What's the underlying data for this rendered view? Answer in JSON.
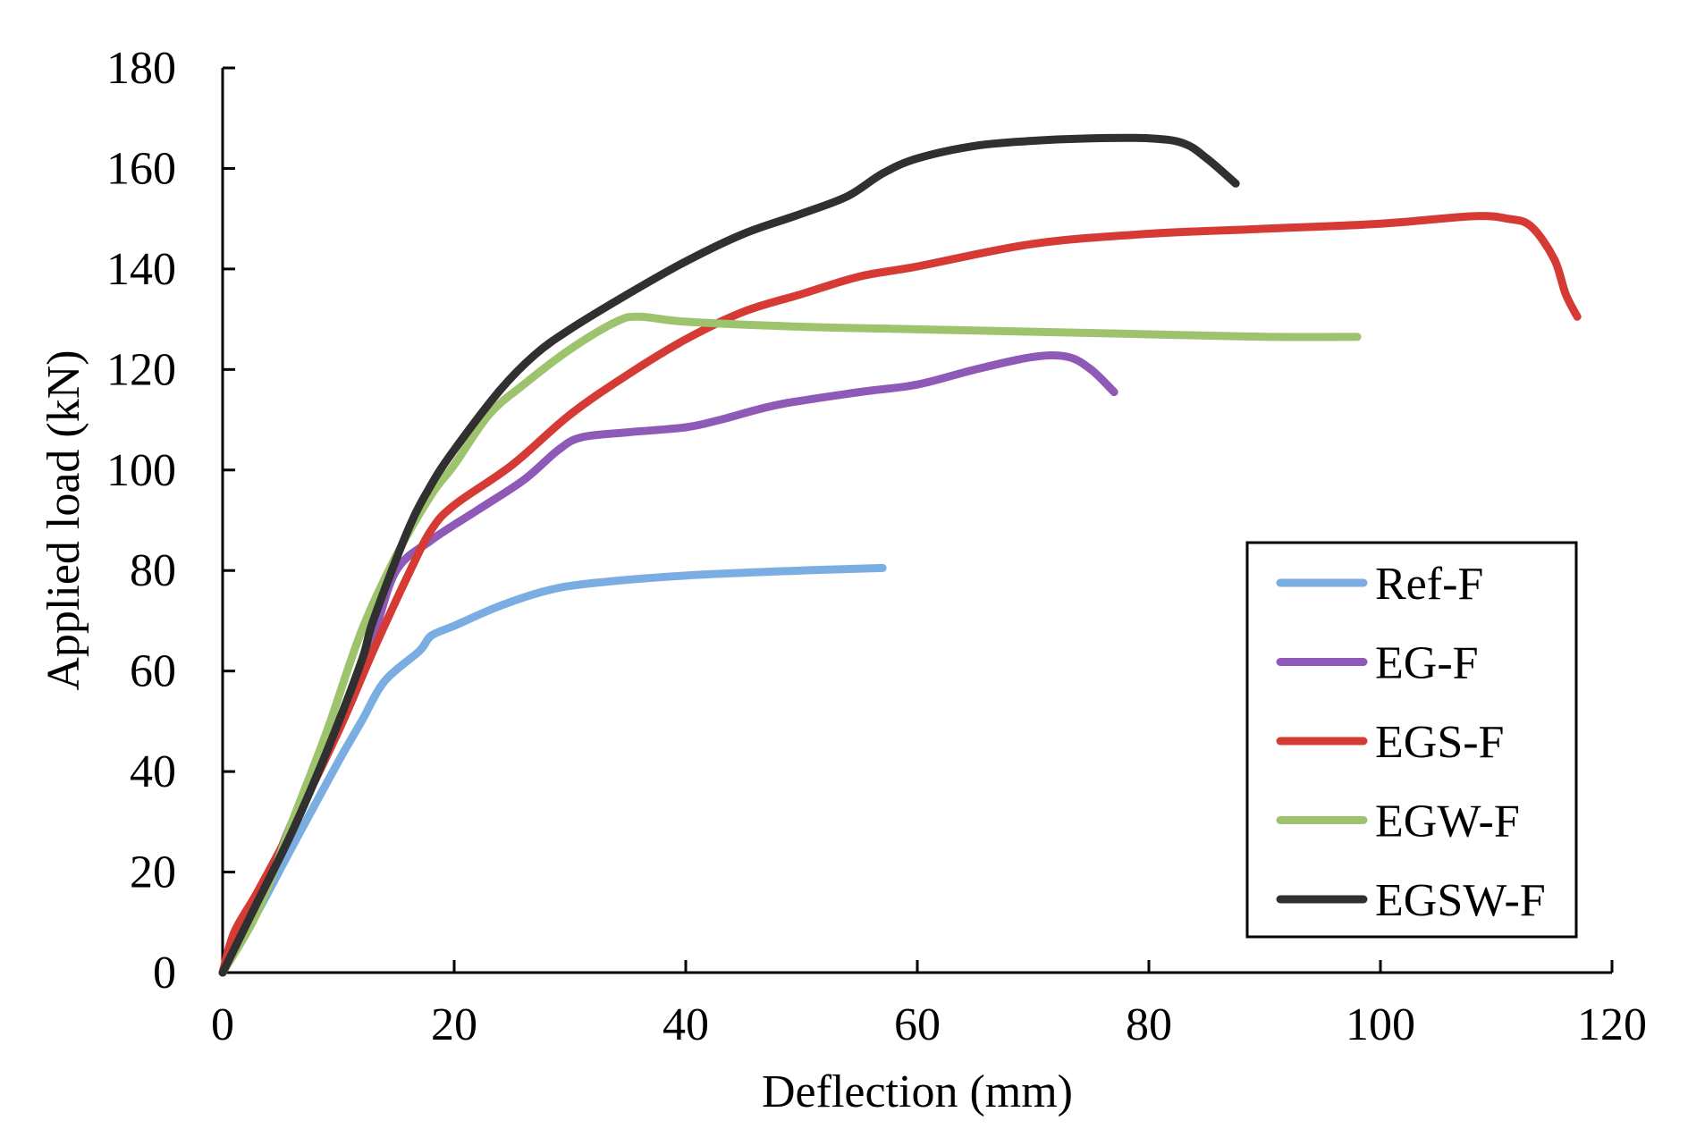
{
  "chart_data": {
    "type": "line",
    "title": "",
    "xlabel": "Deflection (mm)",
    "ylabel": "Applied load (kN)",
    "xlim": [
      0,
      120
    ],
    "ylim": [
      0,
      180
    ],
    "xticks": [
      0,
      20,
      40,
      60,
      80,
      100,
      120
    ],
    "yticks": [
      0,
      20,
      40,
      60,
      80,
      100,
      120,
      140,
      160,
      180
    ],
    "grid": false,
    "legend_position": "right",
    "series": [
      {
        "name": "Ref-F",
        "color": "#7aaee3",
        "points": [
          [
            0,
            0
          ],
          [
            3,
            12
          ],
          [
            6,
            25
          ],
          [
            10,
            42
          ],
          [
            12,
            50
          ],
          [
            14,
            58
          ],
          [
            17,
            64
          ],
          [
            18,
            67
          ],
          [
            20,
            69
          ],
          [
            24,
            73
          ],
          [
            28,
            76
          ],
          [
            32,
            77.5
          ],
          [
            40,
            79
          ],
          [
            50,
            80
          ],
          [
            57,
            80.5
          ]
        ]
      },
      {
        "name": "EG-F",
        "color": "#8e59b7",
        "points": [
          [
            0,
            0
          ],
          [
            3,
            13
          ],
          [
            6,
            30
          ],
          [
            10,
            50
          ],
          [
            13,
            67
          ],
          [
            15,
            80
          ],
          [
            18,
            86
          ],
          [
            22,
            92
          ],
          [
            26,
            98
          ],
          [
            29,
            104
          ],
          [
            31,
            106.5
          ],
          [
            35,
            107.5
          ],
          [
            40,
            108.5
          ],
          [
            43,
            110
          ],
          [
            48,
            113
          ],
          [
            55,
            115.5
          ],
          [
            60,
            117
          ],
          [
            65,
            120
          ],
          [
            70,
            122.5
          ],
          [
            73,
            122.5
          ],
          [
            75,
            120
          ],
          [
            77,
            115.5
          ]
        ]
      },
      {
        "name": "EGS-F",
        "color": "#d63a35",
        "points": [
          [
            0,
            0
          ],
          [
            1,
            8
          ],
          [
            3,
            16
          ],
          [
            6,
            29
          ],
          [
            10,
            48
          ],
          [
            13,
            64
          ],
          [
            16,
            79
          ],
          [
            18,
            88
          ],
          [
            20,
            93
          ],
          [
            25,
            101
          ],
          [
            30,
            111
          ],
          [
            35,
            119
          ],
          [
            40,
            126
          ],
          [
            45,
            131.5
          ],
          [
            50,
            135
          ],
          [
            55,
            138.5
          ],
          [
            60,
            140.5
          ],
          [
            70,
            145
          ],
          [
            80,
            147
          ],
          [
            90,
            148
          ],
          [
            100,
            149
          ],
          [
            108,
            150.5
          ],
          [
            111,
            150
          ],
          [
            113,
            148.5
          ],
          [
            115,
            142
          ],
          [
            116,
            135
          ],
          [
            117,
            130.5
          ]
        ]
      },
      {
        "name": "EGW-F",
        "color": "#9dc46d",
        "points": [
          [
            0,
            0
          ],
          [
            3,
            12
          ],
          [
            6,
            30
          ],
          [
            9,
            48
          ],
          [
            12,
            68
          ],
          [
            15,
            83
          ],
          [
            18,
            95
          ],
          [
            20,
            101
          ],
          [
            23,
            111
          ],
          [
            26,
            117
          ],
          [
            30,
            124
          ],
          [
            34,
            129.5
          ],
          [
            36,
            130.5
          ],
          [
            40,
            129.5
          ],
          [
            50,
            128.5
          ],
          [
            60,
            128
          ],
          [
            70,
            127.5
          ],
          [
            80,
            127
          ],
          [
            90,
            126.5
          ],
          [
            98,
            126.5
          ]
        ]
      },
      {
        "name": "EGSW-F",
        "color": "#303030",
        "points": [
          [
            0,
            0
          ],
          [
            3,
            14
          ],
          [
            6,
            28
          ],
          [
            9,
            44
          ],
          [
            12,
            62
          ],
          [
            13,
            70
          ],
          [
            16,
            88
          ],
          [
            18,
            97
          ],
          [
            20,
            104
          ],
          [
            24,
            116
          ],
          [
            27,
            123
          ],
          [
            30,
            128
          ],
          [
            35,
            135
          ],
          [
            40,
            141.5
          ],
          [
            45,
            147
          ],
          [
            50,
            151
          ],
          [
            54,
            154.5
          ],
          [
            57,
            159
          ],
          [
            60,
            162
          ],
          [
            65,
            164.5
          ],
          [
            70,
            165.5
          ],
          [
            75,
            166
          ],
          [
            80,
            166
          ],
          [
            83,
            165
          ],
          [
            85,
            162
          ],
          [
            87.5,
            157
          ]
        ]
      }
    ]
  }
}
